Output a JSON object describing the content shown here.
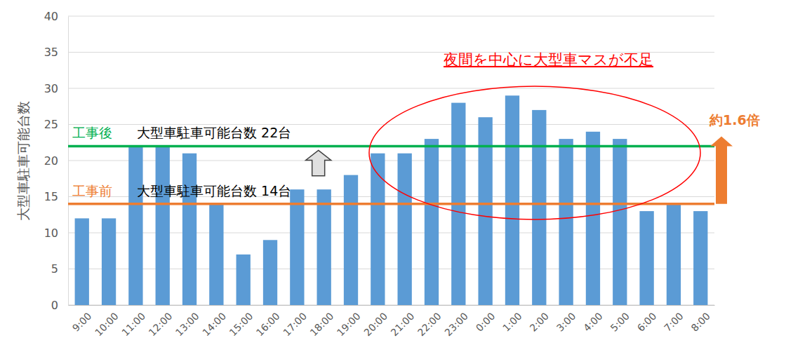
{
  "chart_data": {
    "type": "bar",
    "categories": [
      "9:00",
      "10:00",
      "11:00",
      "12:00",
      "13:00",
      "14:00",
      "15:00",
      "16:00",
      "17:00",
      "18:00",
      "19:00",
      "20:00",
      "21:00",
      "22:00",
      "23:00",
      "0:00",
      "1:00",
      "2:00",
      "3:00",
      "4:00",
      "5:00",
      "6:00",
      "7:00",
      "8:00"
    ],
    "values": [
      12,
      12,
      22,
      22,
      21,
      14,
      7,
      9,
      16,
      16,
      18,
      21,
      21,
      23,
      28,
      26,
      29,
      27,
      23,
      24,
      23,
      13,
      14,
      13
    ],
    "color": "#5b9bd5",
    "ylim": [
      0,
      40
    ],
    "yticks": [
      0,
      5,
      10,
      15,
      20,
      25,
      30,
      35,
      40
    ],
    "grid": true,
    "y_label": "大型車駐車可能台数",
    "reference_lines": [
      {
        "value": 22,
        "color": "#00b050",
        "label": "工事後",
        "text": "大型車駐車可能台数 22台"
      },
      {
        "value": 14,
        "color": "#ed7d31",
        "label": "工事前",
        "text": "大型車駐車可能台数 14台"
      }
    ],
    "annotations": [
      {
        "text": "夜間を中心に大型車マスが不足",
        "color": "#ff0000"
      },
      {
        "text": "約1.6倍",
        "color": "#ed7d31"
      }
    ]
  }
}
